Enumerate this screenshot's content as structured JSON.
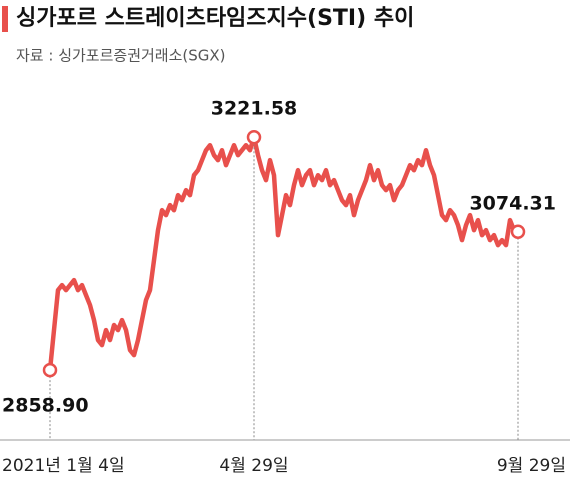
{
  "chart_data": {
    "type": "line",
    "title": "싱가포르 스트레이츠타임즈지수(STI) 추이",
    "subtitle": "자료 : 싱가포르증권거래소(SGX)",
    "categories": [
      "2021년 1월 4일",
      null,
      null,
      null,
      null,
      null,
      null,
      null,
      null,
      null,
      null,
      null,
      null,
      null,
      null,
      null,
      null,
      null,
      null,
      null,
      null,
      null,
      null,
      null,
      null,
      null,
      null,
      null,
      null,
      null,
      null,
      null,
      null,
      null,
      null,
      null,
      null,
      null,
      null,
      null,
      null,
      null,
      null,
      null,
      null,
      null,
      null,
      null,
      null,
      null,
      null,
      "4월 29일",
      null,
      null,
      null,
      null,
      null,
      null,
      null,
      null,
      null,
      null,
      null,
      null,
      null,
      null,
      null,
      null,
      null,
      null,
      null,
      null,
      null,
      null,
      null,
      null,
      null,
      null,
      null,
      null,
      null,
      null,
      null,
      null,
      null,
      null,
      null,
      null,
      null,
      null,
      null,
      null,
      null,
      null,
      null,
      null,
      null,
      null,
      null,
      null,
      null,
      null,
      null,
      null,
      null,
      null,
      null,
      null,
      null,
      null,
      null,
      null,
      null,
      null,
      null,
      null,
      null,
      "9월 29일"
    ],
    "series": [
      {
        "color": "#e8504c",
        "values": [
          2858.9,
          2921.2,
          2983.4,
          2991.2,
          2983.4,
          2991.2,
          2999.0,
          2983.4,
          2991.2,
          2975.6,
          2960.1,
          2936.7,
          2905.6,
          2897.8,
          2921.2,
          2905.6,
          2929.0,
          2921.2,
          2936.7,
          2921.2,
          2890.0,
          2882.2,
          2905.6,
          2936.7,
          2967.9,
          2983.4,
          3030.1,
          3076.8,
          3107.9,
          3100.2,
          3115.8,
          3107.9,
          3131.3,
          3123.5,
          3139.1,
          3131.3,
          3162.4,
          3170.2,
          3185.8,
          3201.3,
          3209.1,
          3193.6,
          3185.8,
          3201.3,
          3178.0,
          3193.6,
          3209.1,
          3193.6,
          3201.3,
          3209.1,
          3201.3,
          3221.58,
          3193.6,
          3170.2,
          3154.7,
          3185.8,
          3162.4,
          3069.0,
          3100.2,
          3131.3,
          3115.8,
          3146.9,
          3170.2,
          3146.9,
          3162.4,
          3170.2,
          3146.9,
          3162.4,
          3154.7,
          3170.2,
          3146.9,
          3154.7,
          3139.1,
          3123.5,
          3115.8,
          3131.3,
          3100.2,
          3123.5,
          3139.1,
          3154.7,
          3178.0,
          3154.7,
          3170.2,
          3146.9,
          3139.1,
          3146.9,
          3123.5,
          3139.1,
          3146.9,
          3162.4,
          3178.0,
          3170.2,
          3185.8,
          3178.0,
          3201.3,
          3178.0,
          3162.4,
          3131.3,
          3100.2,
          3092.4,
          3107.9,
          3100.2,
          3084.6,
          3061.3,
          3084.6,
          3100.2,
          3076.8,
          3092.4,
          3069.0,
          3076.8,
          3061.3,
          3069.0,
          3053.5,
          3061.3,
          3053.5,
          3092.4,
          3076.8,
          3074.31
        ],
        "value_labels": [
          "2858.90",
          null,
          null,
          null,
          null,
          null,
          null,
          null,
          null,
          null,
          null,
          null,
          null,
          null,
          null,
          null,
          null,
          null,
          null,
          null,
          null,
          null,
          null,
          null,
          null,
          null,
          null,
          null,
          null,
          null,
          null,
          null,
          null,
          null,
          null,
          null,
          null,
          null,
          null,
          null,
          null,
          null,
          null,
          null,
          null,
          null,
          null,
          null,
          null,
          null,
          null,
          "3221.58",
          null,
          null,
          null,
          null,
          null,
          null,
          null,
          null,
          null,
          null,
          null,
          null,
          null,
          null,
          null,
          null,
          null,
          null,
          null,
          null,
          null,
          null,
          null,
          null,
          null,
          null,
          null,
          null,
          null,
          null,
          null,
          null,
          null,
          null,
          null,
          null,
          null,
          null,
          null,
          null,
          null,
          null,
          null,
          null,
          null,
          null,
          null,
          null,
          null,
          null,
          null,
          null,
          null,
          null,
          null,
          null,
          null,
          null,
          null,
          null,
          null,
          null,
          null,
          null,
          null,
          "3074.31"
        ]
      }
    ],
    "ylim": [
      2750,
      3320
    ]
  }
}
